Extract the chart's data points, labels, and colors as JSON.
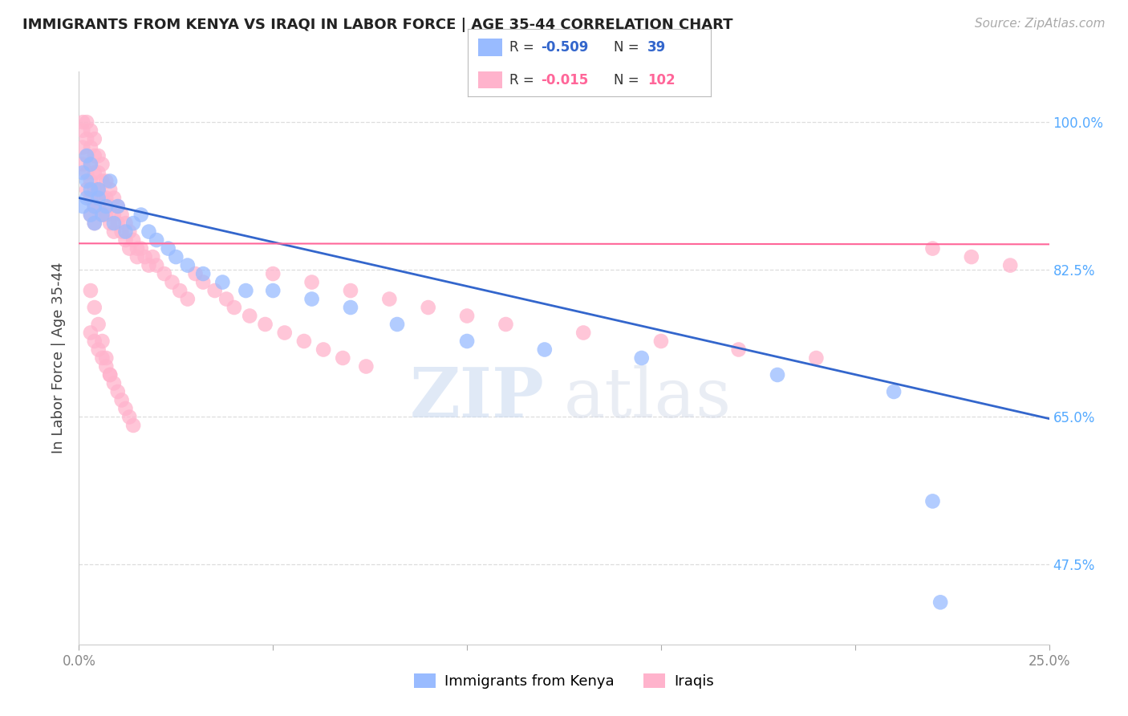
{
  "title": "IMMIGRANTS FROM KENYA VS IRAQI IN LABOR FORCE | AGE 35-44 CORRELATION CHART",
  "source": "Source: ZipAtlas.com",
  "ylabel": "In Labor Force | Age 35-44",
  "watermark_zip": "ZIP",
  "watermark_atlas": "atlas",
  "xlim": [
    0.0,
    0.25
  ],
  "ylim": [
    0.38,
    1.06
  ],
  "xtick_vals": [
    0.0,
    0.05,
    0.1,
    0.15,
    0.2,
    0.25
  ],
  "xtick_labels": [
    "0.0%",
    "",
    "",
    "",
    "",
    "25.0%"
  ],
  "ytick_vals": [
    0.475,
    0.65,
    0.825,
    1.0
  ],
  "ytick_labels": [
    "47.5%",
    "65.0%",
    "82.5%",
    "100.0%"
  ],
  "legend_kenya": "Immigrants from Kenya",
  "legend_iraqi": "Iraqis",
  "R_kenya": -0.509,
  "N_kenya": 39,
  "R_iraqi": -0.015,
  "N_iraqi": 102,
  "kenya_color": "#99BBFF",
  "iraqi_color": "#FFB3CC",
  "kenya_line_color": "#3366CC",
  "iraqi_line_color": "#FF6699",
  "kenya_trend_x": [
    0.0,
    0.25
  ],
  "kenya_trend_y": [
    0.91,
    0.648
  ],
  "iraqi_trend_x": [
    0.0,
    0.25
  ],
  "iraqi_trend_y": [
    0.856,
    0.855
  ],
  "grid_color": "#DDDDDD",
  "background_color": "#FFFFFF",
  "title_color": "#222222",
  "source_color": "#AAAAAA",
  "ytick_color": "#55AAFF",
  "xtick_color": "#888888",
  "kenya_x": [
    0.001,
    0.001,
    0.002,
    0.002,
    0.002,
    0.003,
    0.003,
    0.003,
    0.004,
    0.004,
    0.005,
    0.005,
    0.006,
    0.007,
    0.008,
    0.009,
    0.01,
    0.012,
    0.014,
    0.016,
    0.018,
    0.02,
    0.023,
    0.025,
    0.028,
    0.032,
    0.037,
    0.043,
    0.05,
    0.06,
    0.07,
    0.082,
    0.1,
    0.12,
    0.145,
    0.18,
    0.21,
    0.22,
    0.222
  ],
  "kenya_y": [
    0.94,
    0.9,
    0.93,
    0.91,
    0.96,
    0.89,
    0.92,
    0.95,
    0.9,
    0.88,
    0.92,
    0.91,
    0.89,
    0.9,
    0.93,
    0.88,
    0.9,
    0.87,
    0.88,
    0.89,
    0.87,
    0.86,
    0.85,
    0.84,
    0.83,
    0.82,
    0.81,
    0.8,
    0.8,
    0.79,
    0.78,
    0.76,
    0.74,
    0.73,
    0.72,
    0.7,
    0.68,
    0.55,
    0.43
  ],
  "iraqi_x": [
    0.001,
    0.001,
    0.001,
    0.001,
    0.002,
    0.002,
    0.002,
    0.002,
    0.002,
    0.003,
    0.003,
    0.003,
    0.003,
    0.003,
    0.003,
    0.004,
    0.004,
    0.004,
    0.004,
    0.004,
    0.004,
    0.005,
    0.005,
    0.005,
    0.005,
    0.006,
    0.006,
    0.006,
    0.006,
    0.007,
    0.007,
    0.007,
    0.008,
    0.008,
    0.008,
    0.009,
    0.009,
    0.009,
    0.01,
    0.01,
    0.011,
    0.011,
    0.012,
    0.012,
    0.013,
    0.013,
    0.014,
    0.015,
    0.015,
    0.016,
    0.017,
    0.018,
    0.019,
    0.02,
    0.022,
    0.024,
    0.026,
    0.028,
    0.03,
    0.032,
    0.035,
    0.038,
    0.04,
    0.044,
    0.048,
    0.053,
    0.058,
    0.063,
    0.068,
    0.074,
    0.003,
    0.004,
    0.005,
    0.006,
    0.007,
    0.008,
    0.009,
    0.01,
    0.011,
    0.012,
    0.013,
    0.014,
    0.003,
    0.004,
    0.005,
    0.006,
    0.007,
    0.008,
    0.05,
    0.06,
    0.07,
    0.08,
    0.09,
    0.1,
    0.11,
    0.13,
    0.15,
    0.17,
    0.19,
    0.22,
    0.23,
    0.24
  ],
  "iraqi_y": [
    1.0,
    0.99,
    0.97,
    0.95,
    1.0,
    0.98,
    0.96,
    0.94,
    0.92,
    0.99,
    0.97,
    0.95,
    0.93,
    0.91,
    0.89,
    0.98,
    0.96,
    0.94,
    0.92,
    0.9,
    0.88,
    0.96,
    0.94,
    0.92,
    0.9,
    0.95,
    0.93,
    0.91,
    0.89,
    0.93,
    0.91,
    0.89,
    0.92,
    0.9,
    0.88,
    0.91,
    0.89,
    0.87,
    0.9,
    0.88,
    0.89,
    0.87,
    0.88,
    0.86,
    0.87,
    0.85,
    0.86,
    0.85,
    0.84,
    0.85,
    0.84,
    0.83,
    0.84,
    0.83,
    0.82,
    0.81,
    0.8,
    0.79,
    0.82,
    0.81,
    0.8,
    0.79,
    0.78,
    0.77,
    0.76,
    0.75,
    0.74,
    0.73,
    0.72,
    0.71,
    0.75,
    0.74,
    0.73,
    0.72,
    0.71,
    0.7,
    0.69,
    0.68,
    0.67,
    0.66,
    0.65,
    0.64,
    0.8,
    0.78,
    0.76,
    0.74,
    0.72,
    0.7,
    0.82,
    0.81,
    0.8,
    0.79,
    0.78,
    0.77,
    0.76,
    0.75,
    0.74,
    0.73,
    0.72,
    0.85,
    0.84,
    0.83
  ]
}
